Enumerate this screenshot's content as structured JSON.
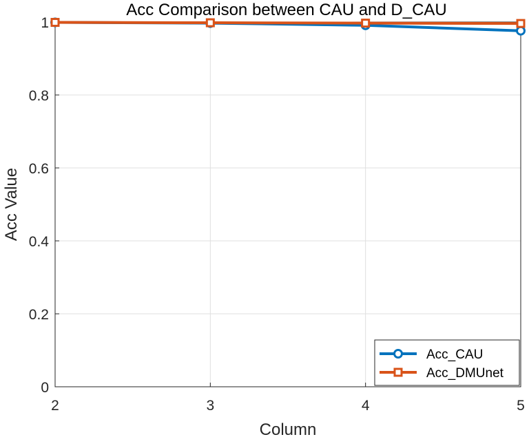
{
  "chart_data": {
    "type": "line",
    "title": "Acc Comparison between CAU and D_CAU",
    "xlabel": "Column",
    "ylabel": "Acc Value",
    "x": [
      2,
      3,
      4,
      5
    ],
    "xlim": [
      2,
      5
    ],
    "ylim": [
      0,
      1
    ],
    "xticks": [
      "2",
      "3",
      "4",
      "5"
    ],
    "yticks": [
      "0",
      "0.2",
      "0.4",
      "0.6",
      "0.8",
      "1"
    ],
    "grid": true,
    "legend_position": "bottom-right",
    "series": [
      {
        "name": "Acc_CAU",
        "values": [
          0.999,
          0.997,
          0.991,
          0.976
        ],
        "color": "#0072BD",
        "marker": "circle"
      },
      {
        "name": "Acc_DMUnet",
        "values": [
          0.999,
          0.998,
          0.997,
          0.996
        ],
        "color": "#D95319",
        "marker": "square"
      }
    ]
  }
}
